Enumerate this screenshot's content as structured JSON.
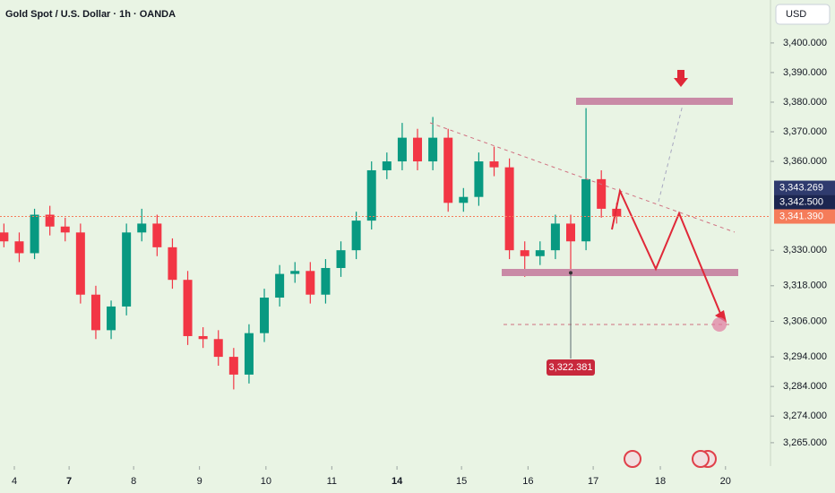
{
  "chart_data": {
    "type": "candlestick",
    "title": "Gold Spot / U.S. Dollar · 1h · OANDA",
    "currency": "USD",
    "xlim": [
      -1.06,
      10.76
    ],
    "xticks": [
      {
        "value": -0.84,
        "label": "4"
      },
      {
        "value": 0,
        "label": "7"
      },
      {
        "value": 0.99,
        "label": "8"
      },
      {
        "value": 2,
        "label": "9"
      },
      {
        "value": 3.02,
        "label": "10"
      },
      {
        "value": 4.03,
        "label": "11"
      },
      {
        "value": 5.03,
        "label": "14"
      },
      {
        "value": 6.02,
        "label": "15"
      },
      {
        "value": 7.04,
        "label": "16"
      },
      {
        "value": 8.04,
        "label": "17"
      },
      {
        "value": 9.07,
        "label": "18"
      },
      {
        "value": 10.07,
        "label": "20"
      }
    ],
    "ylim": [
      3257.1,
      3414.5
    ],
    "yticks": [
      {
        "value": 3400,
        "label": "3,400.000"
      },
      {
        "value": 3390,
        "label": "3,390.000"
      },
      {
        "value": 3380,
        "label": "3,380.000"
      },
      {
        "value": 3370,
        "label": "3,370.000"
      },
      {
        "value": 3360,
        "label": "3,360.000"
      },
      {
        "value": 3330,
        "label": "3,330.000"
      },
      {
        "value": 3318,
        "label": "3,318.000"
      },
      {
        "value": 3306,
        "label": "3,306.000"
      },
      {
        "value": 3294,
        "label": "3,294.000"
      },
      {
        "value": 3284,
        "label": "3,284.000"
      },
      {
        "value": 3274,
        "label": "3,274.000"
      },
      {
        "value": 3265,
        "label": "3,265.000"
      }
    ],
    "up_color": "#089981",
    "down_color": "#f23645",
    "x": [
      -1.0,
      -0.765,
      -0.53,
      -0.295,
      -0.06,
      0.175,
      0.41,
      0.645,
      0.88,
      1.115,
      1.35,
      1.585,
      1.82,
      2.055,
      2.29,
      2.525,
      2.76,
      2.995,
      3.23,
      3.465,
      3.7,
      3.935,
      4.17,
      4.405,
      4.64,
      4.875,
      5.11,
      5.345,
      5.58,
      5.815,
      6.05,
      6.285,
      6.52,
      6.755,
      6.99,
      7.225,
      7.46,
      7.695,
      7.93,
      8.165,
      8.4
    ],
    "open": [
      3336,
      3333,
      3329,
      3342,
      3338,
      3336,
      3315,
      3303,
      3311,
      3336,
      3339,
      3331,
      3320,
      3301,
      3300,
      3294,
      3288,
      3302,
      3314,
      3322,
      3323,
      3315,
      3324,
      3330,
      3340,
      3357,
      3360,
      3368,
      3360,
      3368,
      3346,
      3348,
      3360,
      3358,
      3330,
      3328,
      3330,
      3339,
      3333,
      3354,
      3344
    ],
    "high": [
      3339,
      3336,
      3344,
      3345,
      3341,
      3339,
      3318,
      3313,
      3339,
      3344,
      3342,
      3334,
      3323,
      3304,
      3303,
      3297,
      3305,
      3317,
      3325,
      3326,
      3326,
      3327,
      3333,
      3343,
      3360,
      3363,
      3373,
      3371,
      3375,
      3371,
      3351,
      3363,
      3365,
      3361,
      3333,
      3333,
      3342,
      3342,
      3378,
      3357,
      3346
    ],
    "low": [
      3331,
      3326,
      3327,
      3335,
      3333,
      3312,
      3300,
      3300,
      3308,
      3333,
      3328,
      3317,
      3298,
      3297,
      3291,
      3283,
      3285,
      3299,
      3311,
      3319,
      3312,
      3312,
      3321,
      3327,
      3337,
      3354,
      3357,
      3357,
      3357,
      3343,
      3343,
      3345,
      3355,
      3327,
      3321,
      3325,
      3327,
      3322.381,
      3330,
      3341,
      3339
    ],
    "close": [
      3333,
      3329,
      3342,
      3338,
      3336,
      3315,
      3303,
      3311,
      3336,
      3339,
      3331,
      3320,
      3301,
      3300,
      3294,
      3288,
      3302,
      3314,
      3322,
      3323,
      3315,
      3324,
      3330,
      3340,
      3357,
      3360,
      3368,
      3360,
      3368,
      3346,
      3348,
      3360,
      3358,
      3330,
      3328,
      3330,
      3339,
      3333,
      3354,
      3344,
      3341.39
    ],
    "price_labels": [
      {
        "value": 3343.269,
        "label": "3,343.269",
        "color": "#2f3b6e"
      },
      {
        "value": 3342.5,
        "label": "3,342.500",
        "color": "#1c2650"
      },
      {
        "value": 3341.39,
        "label": "3,341.390",
        "color": "#f57c5a"
      }
    ],
    "low_marker": {
      "value": 3322.381,
      "label": "3,322.381",
      "color": "#c8283c"
    }
  }
}
